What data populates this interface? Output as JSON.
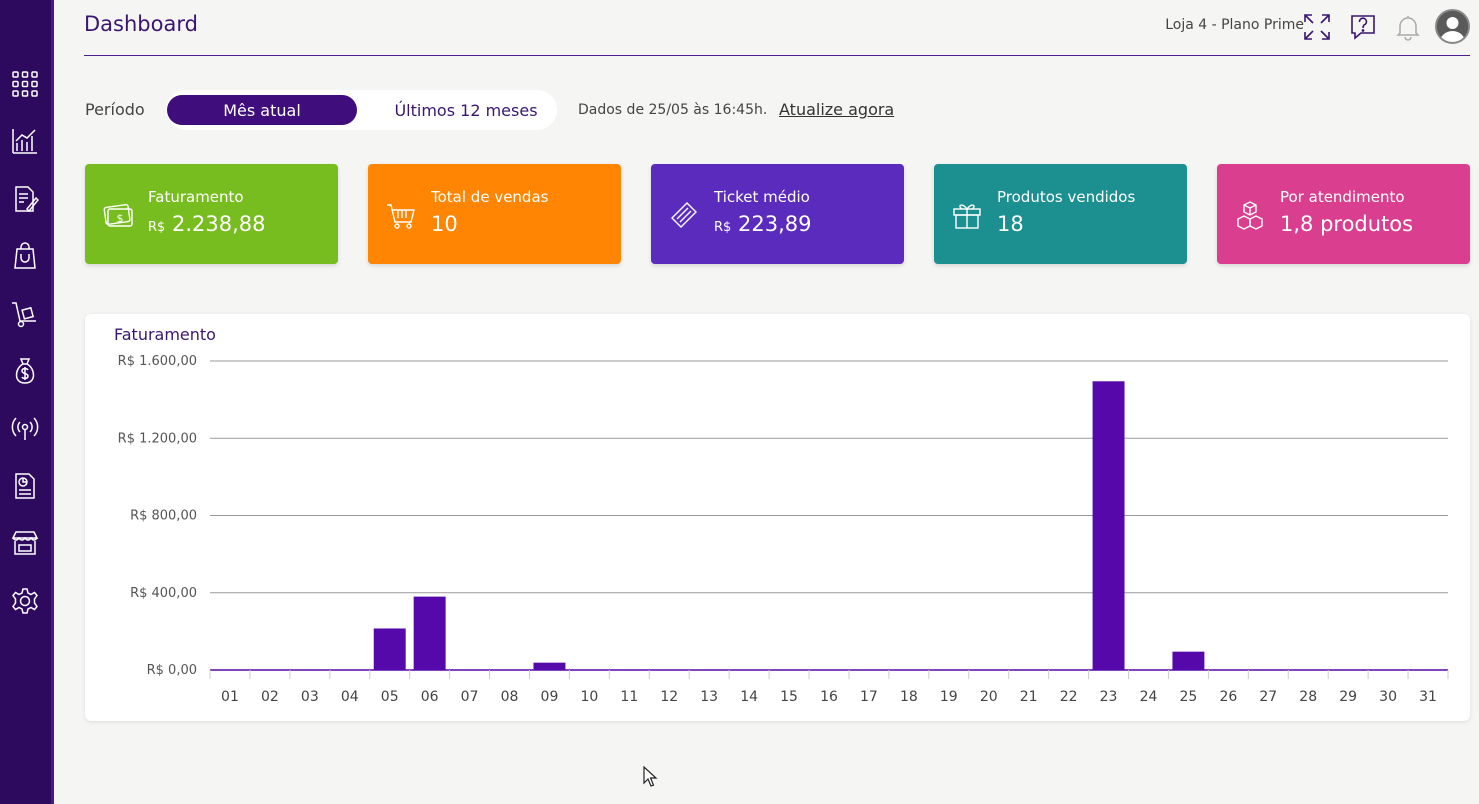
{
  "header": {
    "title": "Dashboard",
    "store": "Loja 4 - Plano Prime"
  },
  "sidebar": {
    "items": [
      "grid-icon",
      "chart-icon",
      "document-edit-icon",
      "shopping-bag-icon",
      "hand-truck-icon",
      "money-bag-icon",
      "broadcast-icon",
      "report-icon",
      "storefront-icon",
      "gear-icon"
    ]
  },
  "filters": {
    "period_label": "Período",
    "current_month": "Mês atual",
    "last_12_months": "Últimos 12 meses",
    "data_info": "Dados de 25/05 às 16:45h.",
    "refresh": "Atualize agora"
  },
  "cards": [
    {
      "label": "Faturamento",
      "prefix": "R$",
      "value": "2.238,88",
      "color": "#78bd1f",
      "icon": "money-icon"
    },
    {
      "label": "Total de vendas",
      "prefix": "",
      "value": "10",
      "color": "#ff8502",
      "icon": "cart-icon"
    },
    {
      "label": "Ticket médio",
      "prefix": "R$",
      "value": "223,89",
      "color": "#5a2bbd",
      "icon": "ticket-icon"
    },
    {
      "label": "Produtos vendidos",
      "prefix": "",
      "value": "18",
      "color": "#1c9090",
      "icon": "gift-icon"
    },
    {
      "label": "Por atendimento",
      "prefix": "",
      "value": "1,8 produtos",
      "color": "#d93f8e",
      "icon": "boxes-icon"
    }
  ],
  "chart_data": {
    "type": "bar",
    "title": "Faturamento",
    "xlabel": "",
    "ylabel": "",
    "ylim": [
      0,
      1600
    ],
    "y_ticks": [
      "R$ 0,00",
      "R$ 400,00",
      "R$ 800,00",
      "R$ 1.200,00",
      "R$ 1.600,00"
    ],
    "y_tick_values": [
      0,
      400,
      800,
      1200,
      1600
    ],
    "categories": [
      "01",
      "02",
      "03",
      "04",
      "05",
      "06",
      "07",
      "08",
      "09",
      "10",
      "11",
      "12",
      "13",
      "14",
      "15",
      "16",
      "17",
      "18",
      "19",
      "20",
      "21",
      "22",
      "23",
      "24",
      "25",
      "26",
      "27",
      "28",
      "29",
      "30",
      "31"
    ],
    "values": [
      0,
      0,
      0,
      0,
      215,
      380,
      0,
      0,
      38,
      0,
      0,
      0,
      0,
      0,
      0,
      0,
      0,
      0,
      0,
      0,
      0,
      0,
      1495,
      0,
      95,
      0,
      0,
      0,
      0,
      0,
      0
    ],
    "bar_color": "#5509ab",
    "grid": true
  }
}
